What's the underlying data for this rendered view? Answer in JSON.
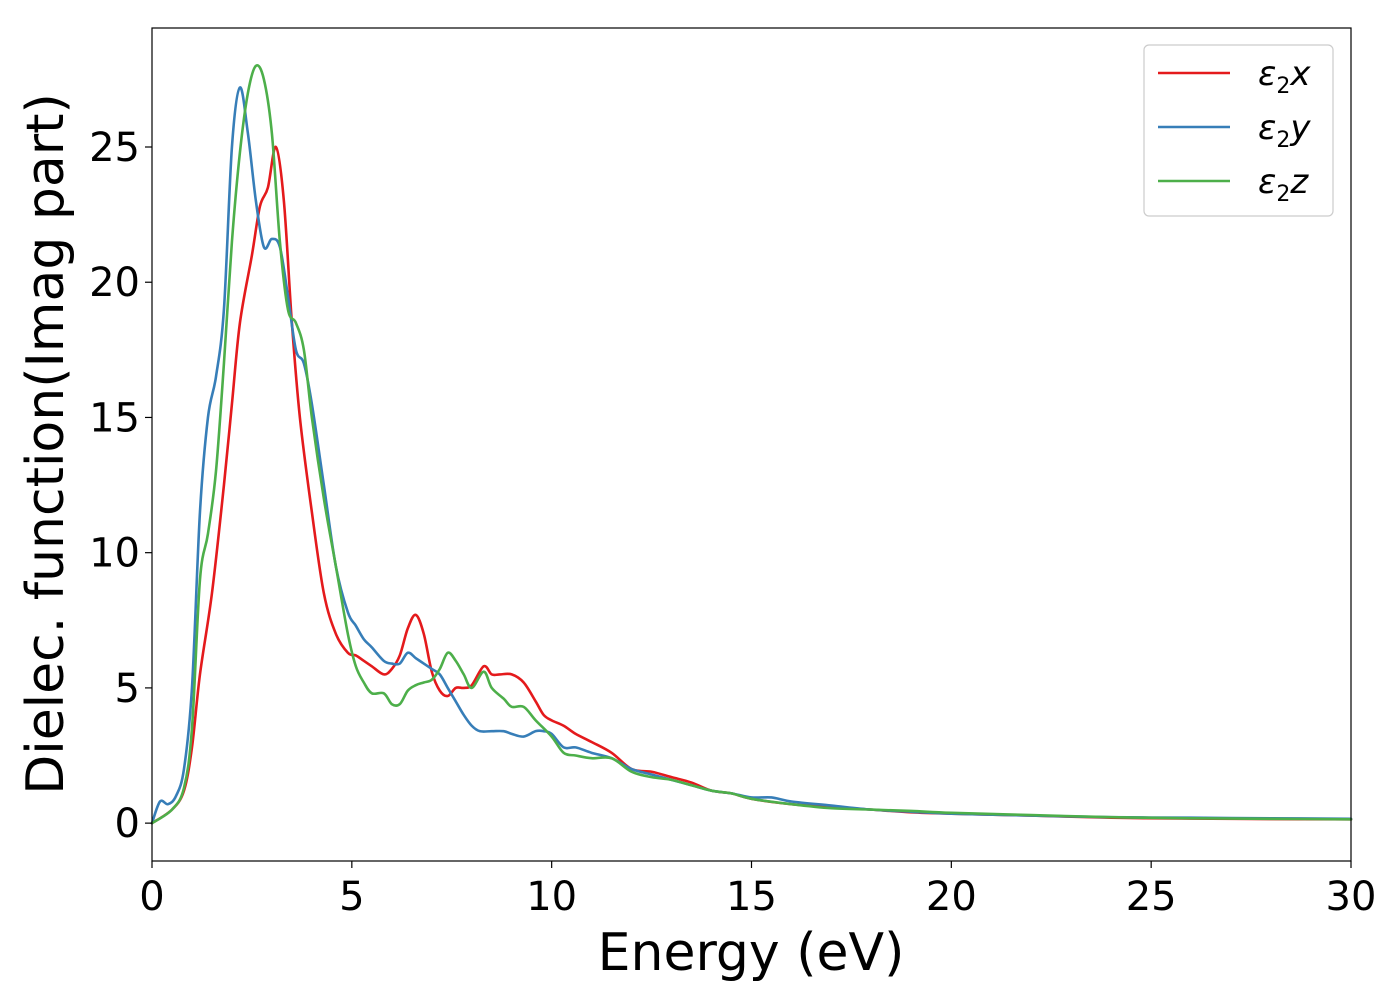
{
  "chart_data": {
    "type": "line",
    "title": "",
    "xlabel": "Energy (eV)",
    "ylabel": "Dielec. function(Imag part)",
    "xlim": [
      0,
      30
    ],
    "ylim": [
      -1.4,
      29.4
    ],
    "xticks": [
      0,
      5,
      10,
      15,
      20,
      25,
      30
    ],
    "yticks": [
      0,
      5,
      10,
      15,
      20,
      25
    ],
    "xtick_labels": [
      "0",
      "5",
      "10",
      "15",
      "20",
      "25",
      "30"
    ],
    "ytick_labels": [
      "0",
      "5",
      "10",
      "15",
      "20",
      "25"
    ],
    "grid": false,
    "legend_position": "top-right",
    "series": [
      {
        "name": "ε₂x",
        "legend_base": "ε",
        "legend_sub": "2",
        "legend_var": "x",
        "color": "#e41a1c",
        "x": [
          0,
          0.5,
          0.8,
          1.0,
          1.2,
          1.5,
          1.8,
          2.0,
          2.2,
          2.5,
          2.7,
          2.9,
          3.1,
          3.3,
          3.5,
          3.7,
          4.0,
          4.3,
          4.6,
          4.9,
          5.1,
          5.3,
          5.5,
          5.8,
          6.0,
          6.2,
          6.4,
          6.6,
          6.8,
          7.0,
          7.2,
          7.4,
          7.6,
          7.8,
          8.0,
          8.3,
          8.5,
          8.7,
          9.0,
          9.3,
          9.6,
          9.8,
          10.0,
          10.3,
          10.6,
          11.0,
          11.5,
          12.0,
          12.5,
          13.0,
          13.5,
          14.0,
          14.5,
          15.0,
          16.0,
          17.0,
          18.0,
          19.0,
          20.0,
          22.0,
          24.0,
          26.0,
          28.0,
          30.0
        ],
        "y": [
          0,
          0.5,
          1.2,
          2.8,
          5.5,
          8.5,
          12.5,
          15.5,
          18.5,
          21.0,
          22.8,
          23.5,
          25.0,
          23.0,
          18.5,
          15.0,
          11.5,
          8.5,
          7.0,
          6.3,
          6.2,
          6.0,
          5.8,
          5.5,
          5.7,
          6.2,
          7.2,
          7.7,
          7.0,
          5.6,
          4.9,
          4.7,
          5.0,
          5.0,
          5.1,
          5.8,
          5.5,
          5.5,
          5.5,
          5.2,
          4.5,
          4.0,
          3.8,
          3.6,
          3.3,
          3.0,
          2.6,
          2.0,
          1.9,
          1.7,
          1.5,
          1.2,
          1.1,
          0.9,
          0.7,
          0.6,
          0.5,
          0.4,
          0.35,
          0.28,
          0.2,
          0.17,
          0.15,
          0.14
        ]
      },
      {
        "name": "ε₂y",
        "legend_base": "ε",
        "legend_sub": "2",
        "legend_var": "y",
        "color": "#377eb8",
        "x": [
          0,
          0.2,
          0.4,
          0.6,
          0.8,
          1.0,
          1.2,
          1.4,
          1.6,
          1.8,
          2.0,
          2.2,
          2.4,
          2.6,
          2.8,
          3.0,
          3.2,
          3.4,
          3.6,
          3.8,
          4.0,
          4.3,
          4.6,
          4.9,
          5.1,
          5.3,
          5.5,
          5.8,
          6.0,
          6.2,
          6.4,
          6.6,
          6.8,
          7.0,
          7.2,
          7.4,
          7.6,
          7.8,
          8.0,
          8.2,
          8.5,
          8.8,
          9.0,
          9.3,
          9.6,
          9.8,
          10.0,
          10.3,
          10.6,
          11.0,
          11.5,
          12.0,
          12.5,
          13.0,
          13.5,
          14.0,
          14.5,
          15.0,
          15.5,
          16.0,
          17.0,
          18.0,
          19.0,
          20.0,
          22.0,
          24.0,
          26.0,
          28.0,
          30.0
        ],
        "y": [
          0,
          0.8,
          0.7,
          1.0,
          2.0,
          5.0,
          11.5,
          15.0,
          16.5,
          19.0,
          25.0,
          27.2,
          25.5,
          23.0,
          21.3,
          21.6,
          21.3,
          19.5,
          17.5,
          17.0,
          15.5,
          12.5,
          9.5,
          7.8,
          7.3,
          6.8,
          6.5,
          6.0,
          5.9,
          5.9,
          6.3,
          6.1,
          5.9,
          5.7,
          5.5,
          5.0,
          4.5,
          4.0,
          3.6,
          3.4,
          3.4,
          3.4,
          3.3,
          3.2,
          3.4,
          3.4,
          3.3,
          2.8,
          2.8,
          2.6,
          2.4,
          2.0,
          1.8,
          1.6,
          1.4,
          1.2,
          1.1,
          0.95,
          0.95,
          0.8,
          0.65,
          0.5,
          0.42,
          0.35,
          0.28,
          0.22,
          0.2,
          0.18,
          0.16
        ]
      },
      {
        "name": "ε₂z",
        "legend_base": "ε",
        "legend_sub": "2",
        "legend_var": "z",
        "color": "#4daf4a",
        "x": [
          0,
          0.5,
          0.8,
          1.0,
          1.2,
          1.4,
          1.6,
          1.8,
          2.0,
          2.2,
          2.4,
          2.6,
          2.8,
          3.0,
          3.2,
          3.4,
          3.6,
          3.8,
          4.0,
          4.3,
          4.6,
          4.9,
          5.1,
          5.3,
          5.5,
          5.8,
          6.0,
          6.2,
          6.4,
          6.6,
          6.8,
          7.0,
          7.2,
          7.4,
          7.6,
          7.8,
          8.0,
          8.3,
          8.5,
          8.8,
          9.0,
          9.3,
          9.6,
          10.0,
          10.3,
          10.6,
          11.0,
          11.5,
          12.0,
          12.5,
          13.0,
          13.5,
          14.0,
          14.5,
          15.0,
          16.0,
          17.0,
          18.0,
          19.0,
          20.0,
          22.0,
          24.0,
          26.0,
          28.0,
          30.0
        ],
        "y": [
          0,
          0.5,
          1.3,
          3.5,
          9.0,
          10.7,
          13.0,
          17.0,
          21.5,
          24.8,
          27.0,
          28.0,
          27.5,
          25.5,
          21.5,
          19.0,
          18.5,
          17.5,
          15.0,
          12.0,
          9.5,
          7.0,
          5.8,
          5.2,
          4.8,
          4.8,
          4.4,
          4.4,
          4.9,
          5.1,
          5.2,
          5.3,
          5.7,
          6.3,
          6.0,
          5.5,
          5.0,
          5.6,
          5.0,
          4.6,
          4.3,
          4.3,
          3.8,
          3.2,
          2.6,
          2.5,
          2.4,
          2.4,
          1.9,
          1.7,
          1.6,
          1.4,
          1.2,
          1.1,
          0.9,
          0.7,
          0.55,
          0.5,
          0.45,
          0.38,
          0.3,
          0.22,
          0.18,
          0.16,
          0.14
        ]
      }
    ]
  }
}
